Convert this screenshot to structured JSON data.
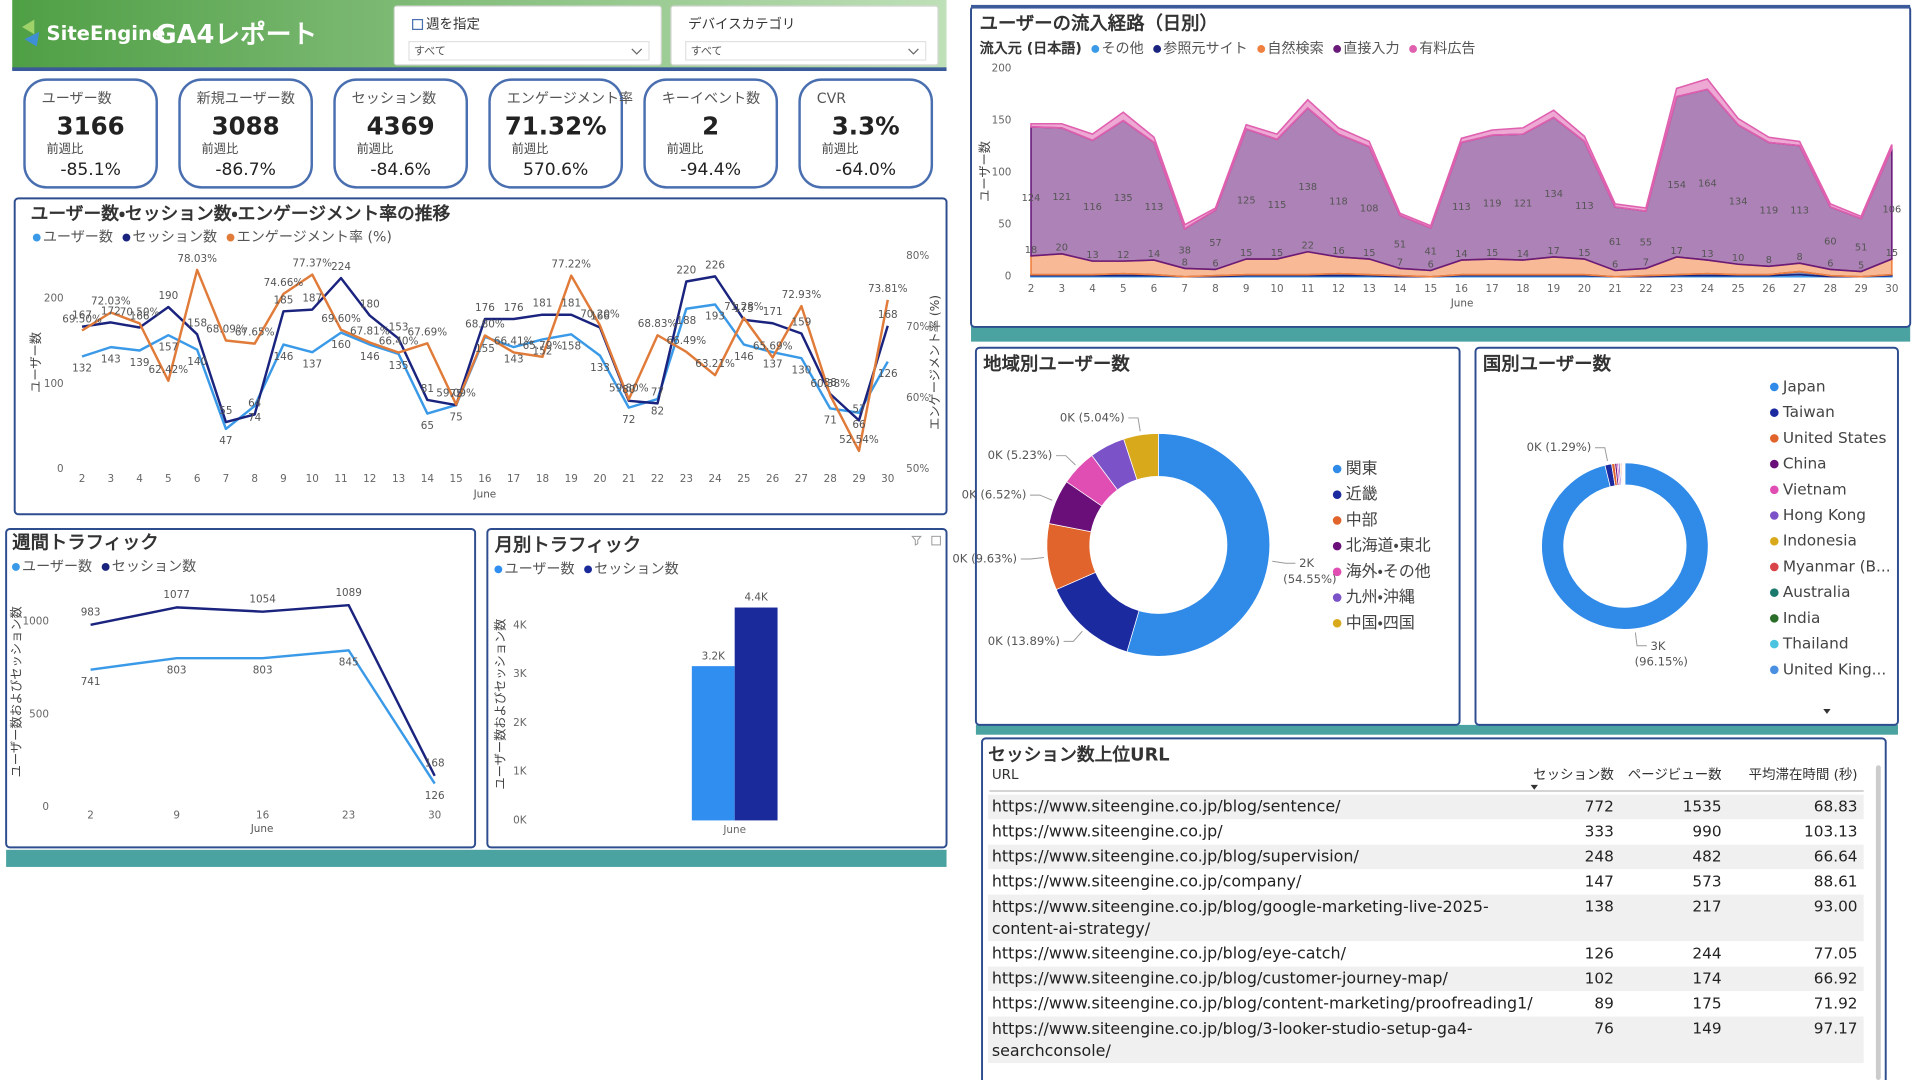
{
  "header": {
    "logo": "SiteEngine",
    "title": "GA4レポート"
  },
  "filters": [
    {
      "label": "週を指定",
      "value": "すべて"
    },
    {
      "label": "デバイスカテゴリ",
      "value": "すべて"
    }
  ],
  "kpis": [
    {
      "title": "ユーザー数",
      "value": "3166",
      "compare_label": "前週比",
      "change": "-85.1%"
    },
    {
      "title": "新規ユーザー数",
      "value": "3088",
      "compare_label": "前週比",
      "change": "-86.7%"
    },
    {
      "title": "セッション数",
      "value": "4369",
      "compare_label": "前週比",
      "change": "-84.6%"
    },
    {
      "title": "エンゲージメント率",
      "value": "71.32%",
      "compare_label": "前週比",
      "change": "570.6%"
    },
    {
      "title": "キーイベント数",
      "value": "2",
      "compare_label": "前週比",
      "change": "-94.4%"
    },
    {
      "title": "CVR",
      "value": "3.3%",
      "compare_label": "前週比",
      "change": "-64.0%"
    }
  ],
  "chart_data": [
    {
      "type": "line",
      "title": "ユーザー数・セッション数・エンゲージメント率の推移",
      "x": [
        2,
        3,
        4,
        5,
        6,
        7,
        8,
        9,
        10,
        11,
        12,
        13,
        14,
        15,
        16,
        17,
        18,
        19,
        20,
        21,
        22,
        23,
        24,
        25,
        26,
        27,
        28,
        29,
        30
      ],
      "x_label": "June",
      "y_label": "ユーザー数",
      "y2_label": "エンゲージメント率 (%)",
      "ylim": [
        0,
        250
      ],
      "yticks": [
        0,
        100,
        200
      ],
      "y2lim": [
        50,
        80
      ],
      "y2ticks": [
        {
          "value": 50,
          "label": "50%"
        },
        {
          "value": 60,
          "label": "60%"
        },
        {
          "value": 70,
          "label": "70%"
        },
        {
          "value": 80,
          "label": "80%"
        }
      ],
      "grid": false,
      "series": [
        {
          "name": "ユーザー数",
          "color": "#3a9ae8",
          "values": [
            132,
            143,
            139,
            157,
            140,
            47,
            74,
            146,
            137,
            160,
            146,
            135,
            65,
            75,
            155,
            143,
            152,
            158,
            133,
            72,
            82,
            188,
            193,
            146,
            137,
            130,
            71,
            66,
            126
          ]
        },
        {
          "name": "セッション数",
          "color": "#1a237e",
          "values": [
            167,
            172,
            166,
            190,
            158,
            55,
            64,
            185,
            187,
            224,
            180,
            153,
            81,
            75,
            176,
            176,
            181,
            181,
            166,
            80,
            77,
            220,
            226,
            175,
            171,
            159,
            88,
            57,
            168
          ]
        },
        {
          "name": "エンゲージメント率 (%)",
          "color": "#e07b39",
          "axis": "y2",
          "values": [
            69.5,
            72.03,
            70.5,
            62.42,
            78.03,
            68.09,
            67.65,
            74.66,
            77.37,
            69.6,
            67.81,
            66.4,
            67.69,
            59.09,
            68.8,
            66.41,
            65.79,
            77.22,
            70.2,
            59.8,
            68.83,
            66.49,
            63.21,
            71.28,
            65.69,
            72.93,
            60.38,
            52.54,
            73.81
          ],
          "value_labels": [
            "69.50%",
            "72.03%",
            "70.50%",
            "62.42%",
            "78.03%",
            "68.09%",
            "67.65%",
            "74.66%",
            "77.37%",
            "69.60%",
            "67.81%",
            "66.40%",
            "67.69%",
            "59.09%",
            "68.80%",
            "66.41%",
            "65.79%",
            "77.22%",
            "70.20%",
            "59.80%",
            "68.83%",
            "66.49%",
            "63.21%",
            "71.28%",
            "65.69%",
            "72.93%",
            "60.38%",
            "52.54%",
            "73.81%"
          ]
        }
      ]
    },
    {
      "type": "area",
      "title": "ユーザーの流入経路（日別）",
      "legend_title": "流入元 (日本語)",
      "x": [
        2,
        3,
        4,
        5,
        6,
        7,
        8,
        9,
        10,
        11,
        12,
        13,
        14,
        15,
        16,
        17,
        18,
        19,
        20,
        21,
        22,
        23,
        24,
        25,
        26,
        27,
        28,
        29,
        30
      ],
      "x_label": "June",
      "y_label": "ユーザー数",
      "ylim": [
        0,
        200
      ],
      "yticks": [
        0,
        50,
        100,
        150,
        200
      ],
      "grid": false,
      "stacked": true,
      "series": [
        {
          "name": "その他",
          "color": "#3a9ae8",
          "values": [
            1,
            1,
            1,
            1,
            1,
            0,
            0,
            1,
            1,
            1,
            1,
            1,
            0,
            0,
            1,
            1,
            1,
            1,
            1,
            0,
            0,
            1,
            1,
            1,
            1,
            2,
            0,
            0,
            1
          ]
        },
        {
          "name": "参照元サイト",
          "color": "#1a237e",
          "values": [
            1,
            1,
            1,
            2,
            1,
            0,
            1,
            1,
            1,
            1,
            2,
            1,
            1,
            0,
            1,
            1,
            1,
            1,
            1,
            0,
            1,
            1,
            2,
            1,
            1,
            3,
            1,
            0,
            1
          ]
        },
        {
          "name": "自然検索",
          "color": "#f08040",
          "values": [
            18,
            20,
            13,
            12,
            14,
            8,
            6,
            15,
            15,
            22,
            16,
            15,
            7,
            6,
            14,
            15,
            14,
            17,
            15,
            6,
            7,
            17,
            13,
            10,
            8,
            8,
            6,
            5,
            15
          ]
        },
        {
          "name": "直接入力",
          "color": "#6a1b7a",
          "values": [
            124,
            121,
            116,
            135,
            113,
            38,
            57,
            125,
            115,
            138,
            118,
            108,
            51,
            41,
            113,
            119,
            121,
            134,
            113,
            61,
            55,
            154,
            164,
            134,
            119,
            113,
            60,
            51,
            106
          ]
        },
        {
          "name": "有料広告",
          "color": "#e060b0",
          "values": [
            3,
            4,
            6,
            8,
            5,
            4,
            2,
            4,
            5,
            8,
            6,
            5,
            2,
            2,
            4,
            5,
            6,
            7,
            5,
            3,
            3,
            8,
            10,
            6,
            5,
            4,
            3,
            2,
            4
          ]
        }
      ]
    },
    {
      "type": "line",
      "title": "週間トラフィック",
      "x": [
        2,
        9,
        16,
        23,
        30
      ],
      "x_label": "June",
      "y_label": "ユーザー数およびセッション数",
      "ylim": [
        0,
        1150
      ],
      "yticks": [
        0,
        500,
        1000
      ],
      "grid": false,
      "series": [
        {
          "name": "ユーザー数",
          "color": "#3a9ae8",
          "values": [
            741,
            803,
            803,
            845,
            126
          ]
        },
        {
          "name": "セッション数",
          "color": "#1a237e",
          "values": [
            983,
            1077,
            1054,
            1089,
            168
          ]
        }
      ]
    },
    {
      "type": "bar",
      "title": "月別トラフィック",
      "y_label": "ユーザー数およびセッション数",
      "categories": [
        "June"
      ],
      "ylim": [
        0,
        4800
      ],
      "yticks": [
        {
          "value": 0,
          "label": "0K"
        },
        {
          "value": 1000,
          "label": "1K"
        },
        {
          "value": 2000,
          "label": "2K"
        },
        {
          "value": 3000,
          "label": "3K"
        },
        {
          "value": 4000,
          "label": "4K"
        }
      ],
      "grid": false,
      "series": [
        {
          "name": "ユーザー数",
          "color": "#2f8ef0",
          "values": [
            3166
          ],
          "value_labels": [
            "3.2K"
          ]
        },
        {
          "name": "セッション数",
          "color": "#1a2a9a",
          "values": [
            4369
          ],
          "value_labels": [
            "4.4K"
          ]
        }
      ]
    },
    {
      "type": "donut",
      "title": "地域別ユーザー数",
      "categories": [
        "関東",
        "近畿",
        "中部",
        "北海道・東北",
        "海外・その他",
        "九州・沖縄",
        "中国・四国"
      ],
      "values": [
        54.55,
        13.89,
        9.63,
        6.52,
        5.23,
        5.14,
        5.04
      ],
      "value_labels": [
        "2K (54.55%)",
        "0K (13.89%)",
        "0K (9.63%)",
        "0K (6.52%)",
        "0K (5.23%)",
        null,
        "0K (5.04%)"
      ],
      "colors": [
        "#2f8ae8",
        "#1c2aa0",
        "#e0642c",
        "#6a0f7a",
        "#e04eb4",
        "#7b52c8",
        "#d9a91c"
      ]
    },
    {
      "type": "donut",
      "title": "国別ユーザー数",
      "categories": [
        "Japan",
        "Taiwan",
        "United States",
        "China",
        "Vietnam",
        "Hong Kong",
        "Indonesia",
        "Myanmar (B...",
        "Australia",
        "India",
        "Thailand",
        "United King..."
      ],
      "values": [
        96.15,
        1.29,
        0.6,
        0.4,
        0.3,
        0.3,
        0.2,
        0.2,
        0.15,
        0.15,
        0.13,
        0.13
      ],
      "value_labels": [
        "3K (96.15%)",
        "0K (1.29%)",
        null,
        null,
        null,
        null,
        null,
        null,
        null,
        null,
        null,
        null
      ],
      "colors": [
        "#2f8ae8",
        "#1c2aa0",
        "#e0642c",
        "#6a0f7a",
        "#e04eb4",
        "#7b52c8",
        "#d9a91c",
        "#d9434a",
        "#1a7a6e",
        "#2a6e2a",
        "#4cc4e0",
        "#4a90e2"
      ]
    }
  ],
  "table": {
    "title": "セッション数上位URL",
    "columns": [
      "URL",
      "セッション数",
      "ページビュー数",
      "平均滞在時間 (秒)"
    ],
    "rows": [
      [
        "https://www.siteengine.co.jp/blog/sentence/",
        "772",
        "1535",
        "68.83"
      ],
      [
        "https://www.siteengine.co.jp/",
        "333",
        "990",
        "103.13"
      ],
      [
        "https://www.siteengine.co.jp/blog/supervision/",
        "248",
        "482",
        "66.64"
      ],
      [
        "https://www.siteengine.co.jp/company/",
        "147",
        "573",
        "88.61"
      ],
      [
        "https://www.siteengine.co.jp/blog/google-marketing-live-2025-content-ai-strategy/",
        "138",
        "217",
        "93.00"
      ],
      [
        "https://www.siteengine.co.jp/blog/eye-catch/",
        "126",
        "244",
        "77.05"
      ],
      [
        "https://www.siteengine.co.jp/blog/customer-journey-map/",
        "102",
        "174",
        "66.92"
      ],
      [
        "https://www.siteengine.co.jp/blog/content-marketing/proofreading1/",
        "89",
        "175",
        "71.92"
      ],
      [
        "https://www.siteengine.co.jp/blog/3-looker-studio-setup-ga4-searchconsole/",
        "76",
        "149",
        "97.17"
      ]
    ]
  }
}
